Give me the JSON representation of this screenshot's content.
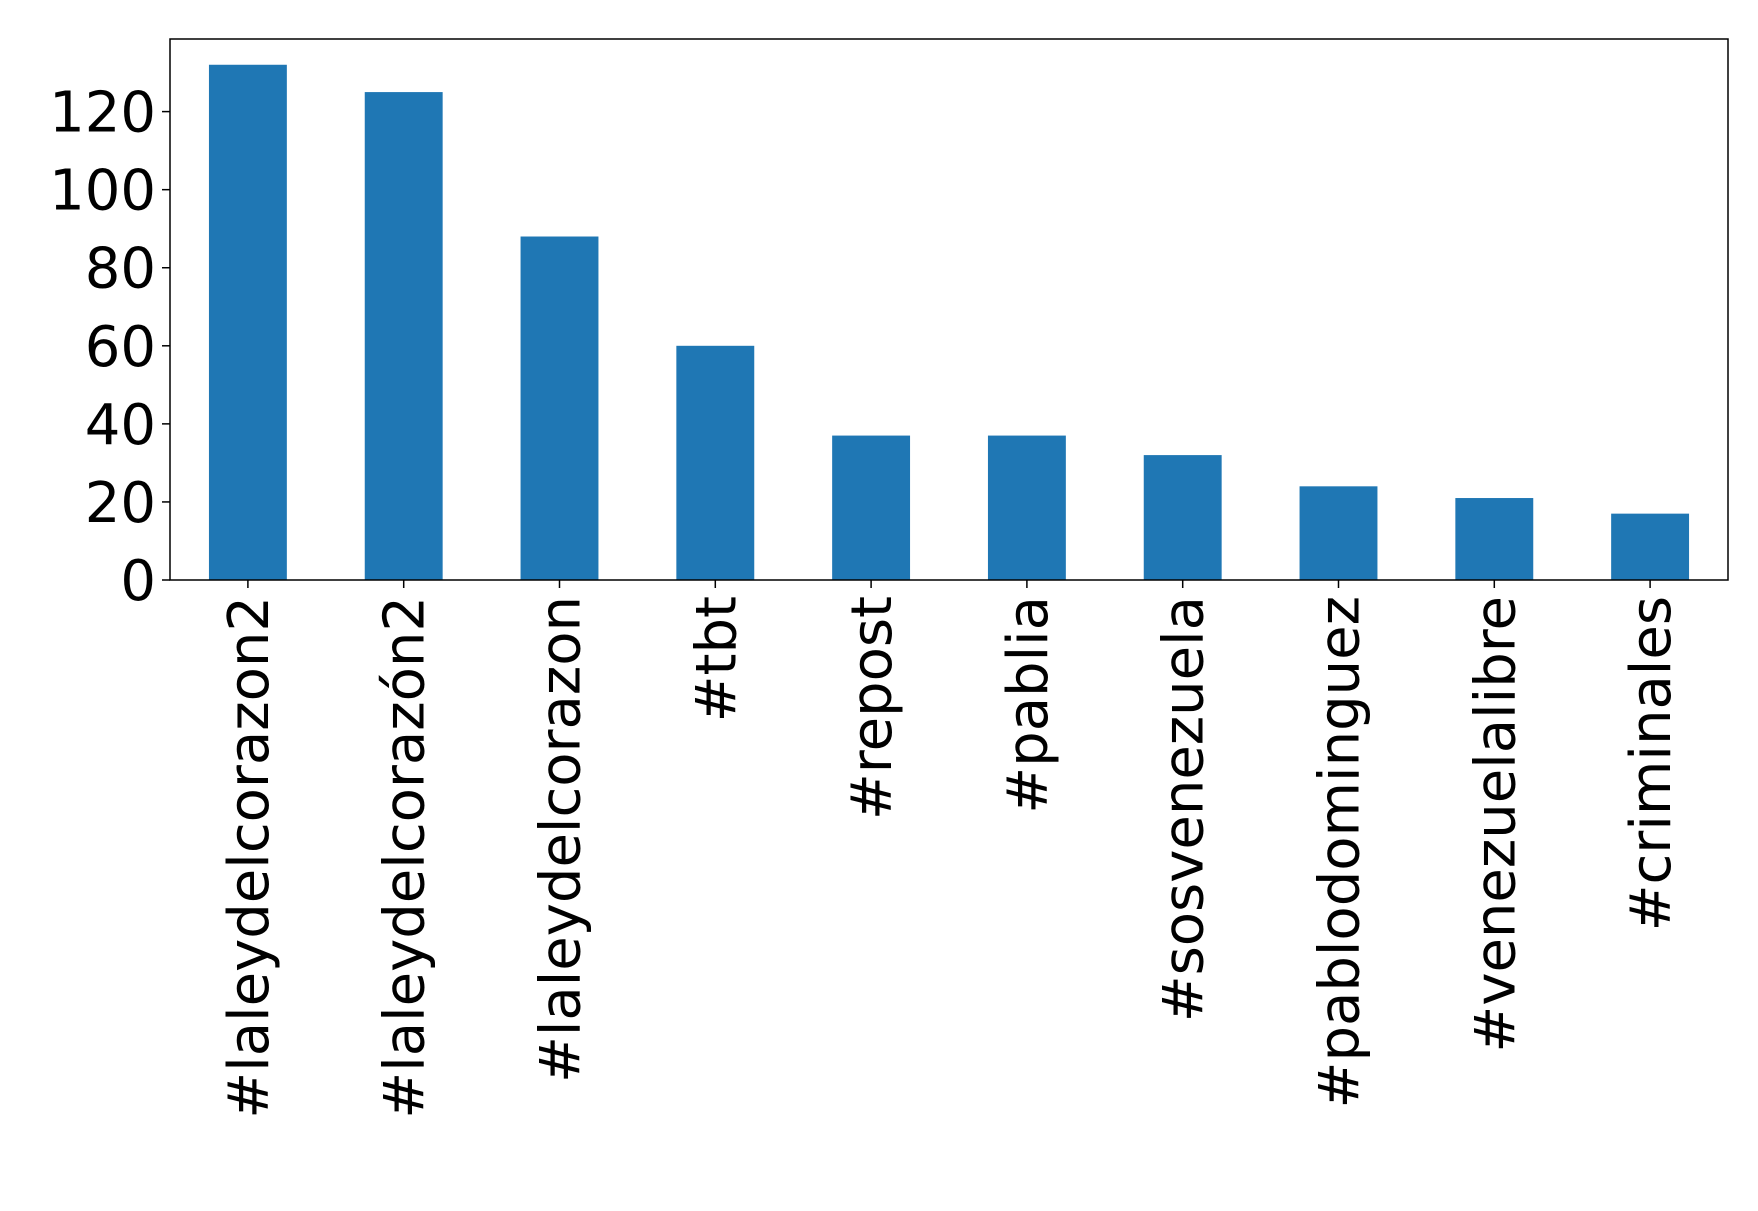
{
  "chart_data": {
    "type": "bar",
    "categories": [
      "#laleydelcorazon2",
      "#laleydelcorazón2",
      "#laleydelcorazon",
      "#tbt",
      "#repost",
      "#pablia",
      "#sosvenezuela",
      "#pablodominguez",
      "#venezuelalibre",
      "#criminales"
    ],
    "values": [
      132,
      125,
      88,
      60,
      37,
      37,
      32,
      24,
      21,
      17
    ],
    "color": "#1f77b4",
    "ylim": [
      0,
      138.6
    ],
    "yticks": [
      0,
      20,
      40,
      60,
      80,
      100,
      120
    ]
  }
}
